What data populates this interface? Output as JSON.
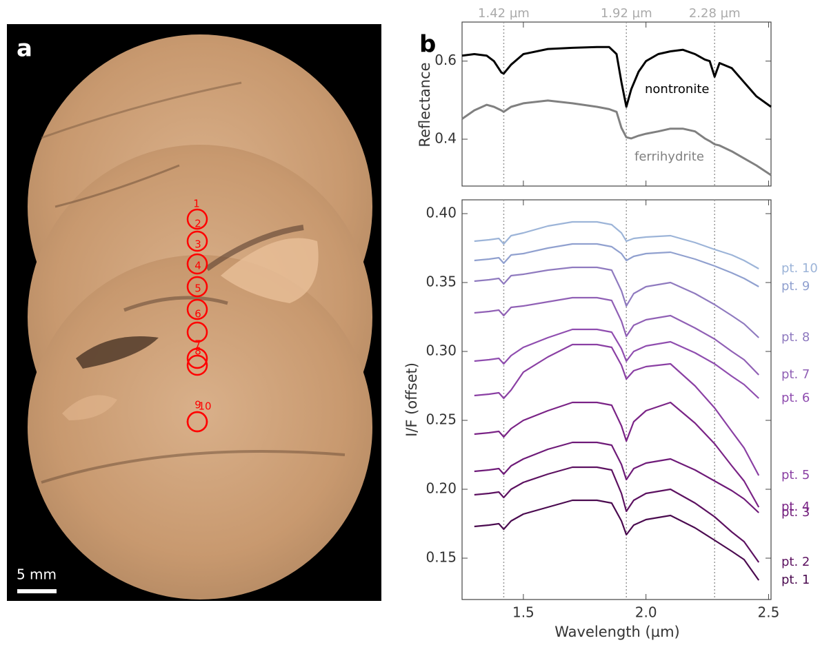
{
  "panel_a": {
    "label": "a",
    "scale_bar": "5 mm",
    "points": [
      "1",
      "2",
      "3",
      "4",
      "5",
      "6",
      "7",
      "8",
      "9",
      "10"
    ]
  },
  "chart_data": [
    {
      "type": "line",
      "panel_label": "b",
      "y_label": "Reflectance",
      "x": [
        1.25,
        1.3,
        1.35,
        1.38,
        1.41,
        1.42,
        1.45,
        1.5,
        1.6,
        1.7,
        1.8,
        1.85,
        1.88,
        1.9,
        1.92,
        1.94,
        1.97,
        2.0,
        2.05,
        2.1,
        2.15,
        2.2,
        2.24,
        2.26,
        2.28,
        2.3,
        2.35,
        2.4,
        2.45,
        2.51
      ],
      "xlim": [
        1.25,
        2.51
      ],
      "ylim": [
        0.28,
        0.7
      ],
      "yticks": [
        0.4,
        0.6
      ],
      "vlines": [
        {
          "value": 1.42,
          "label": "1.42 µm"
        },
        {
          "value": 1.92,
          "label": "1.92 µm"
        },
        {
          "value": 2.28,
          "label": "2.28 µm"
        }
      ],
      "series": [
        {
          "name": "nontronite",
          "color": "#000000",
          "values": [
            0.614,
            0.618,
            0.614,
            0.6,
            0.571,
            0.568,
            0.591,
            0.618,
            0.631,
            0.634,
            0.636,
            0.636,
            0.618,
            0.546,
            0.483,
            0.528,
            0.573,
            0.6,
            0.618,
            0.625,
            0.629,
            0.618,
            0.604,
            0.6,
            0.56,
            0.595,
            0.582,
            0.546,
            0.51,
            0.483
          ]
        },
        {
          "name": "ferrihydrite",
          "color": "#808080",
          "values": [
            0.452,
            0.474,
            0.488,
            0.483,
            0.474,
            0.47,
            0.483,
            0.492,
            0.499,
            0.492,
            0.483,
            0.477,
            0.47,
            0.429,
            0.405,
            0.402,
            0.409,
            0.414,
            0.42,
            0.427,
            0.427,
            0.42,
            0.402,
            0.395,
            0.387,
            0.384,
            0.369,
            0.351,
            0.333,
            0.308
          ]
        }
      ]
    },
    {
      "type": "line",
      "x_label": "Wavelength (µm)",
      "y_label": "I/F (offset)",
      "x": [
        1.3,
        1.36,
        1.4,
        1.42,
        1.45,
        1.5,
        1.6,
        1.7,
        1.8,
        1.86,
        1.9,
        1.92,
        1.95,
        2.0,
        2.1,
        2.2,
        2.28,
        2.35,
        2.4,
        2.46
      ],
      "xlim": [
        1.25,
        2.51
      ],
      "ylim": [
        0.12,
        0.41
      ],
      "xticks": [
        1.5,
        {
          "value": 2,
          "label": "2.0"
        },
        2.5
      ],
      "yticks": [
        0.15,
        {
          "value": 0.2,
          "label": "0.20"
        },
        0.25,
        {
          "value": 0.3,
          "label": "0.30"
        },
        0.35,
        {
          "value": 0.4,
          "label": "0.40"
        }
      ],
      "series": [
        {
          "name": "pt. 1",
          "color": "#4a0a4f",
          "values": [
            0.173,
            0.174,
            0.175,
            0.171,
            0.177,
            0.182,
            0.187,
            0.192,
            0.192,
            0.19,
            0.177,
            0.167,
            0.174,
            0.178,
            0.181,
            0.172,
            0.163,
            0.155,
            0.149,
            0.134
          ]
        },
        {
          "name": "pt. 2",
          "color": "#5c1160",
          "values": [
            0.196,
            0.197,
            0.198,
            0.194,
            0.2,
            0.205,
            0.211,
            0.216,
            0.216,
            0.214,
            0.197,
            0.184,
            0.192,
            0.197,
            0.2,
            0.19,
            0.18,
            0.169,
            0.162,
            0.147
          ]
        },
        {
          "name": "pt. 3",
          "color": "#6e1a78",
          "values": [
            0.213,
            0.214,
            0.215,
            0.211,
            0.217,
            0.222,
            0.229,
            0.234,
            0.234,
            0.232,
            0.218,
            0.207,
            0.215,
            0.219,
            0.222,
            0.214,
            0.206,
            0.199,
            0.193,
            0.183
          ]
        },
        {
          "name": "pt. 4",
          "color": "#7a2386",
          "values": [
            0.24,
            0.241,
            0.242,
            0.238,
            0.244,
            0.25,
            0.257,
            0.263,
            0.263,
            0.261,
            0.246,
            0.235,
            0.249,
            0.257,
            0.263,
            0.248,
            0.233,
            0.217,
            0.206,
            0.187
          ]
        },
        {
          "name": "pt. 5",
          "color": "#8a3fa3",
          "values": [
            0.268,
            0.269,
            0.27,
            0.266,
            0.272,
            0.285,
            0.296,
            0.305,
            0.305,
            0.303,
            0.29,
            0.28,
            0.286,
            0.289,
            0.291,
            0.275,
            0.259,
            0.242,
            0.23,
            0.21
          ]
        },
        {
          "name": "pt. 6",
          "color": "#8f4daf",
          "values": [
            0.293,
            0.294,
            0.295,
            0.291,
            0.297,
            0.303,
            0.31,
            0.316,
            0.316,
            0.314,
            0.302,
            0.293,
            0.3,
            0.304,
            0.307,
            0.299,
            0.291,
            0.282,
            0.276,
            0.266
          ]
        },
        {
          "name": "pt. 7",
          "color": "#9060b5",
          "values": [
            0.328,
            0.329,
            0.33,
            0.326,
            0.332,
            0.333,
            0.336,
            0.339,
            0.339,
            0.337,
            0.322,
            0.311,
            0.319,
            0.323,
            0.326,
            0.317,
            0.309,
            0.3,
            0.294,
            0.283
          ]
        },
        {
          "name": "pt. 8",
          "color": "#8f7abf",
          "values": [
            0.351,
            0.352,
            0.353,
            0.349,
            0.355,
            0.356,
            0.359,
            0.361,
            0.361,
            0.359,
            0.344,
            0.333,
            0.342,
            0.347,
            0.35,
            0.342,
            0.334,
            0.326,
            0.32,
            0.31
          ]
        },
        {
          "name": "pt. 9",
          "color": "#90a0cf",
          "values": [
            0.366,
            0.367,
            0.368,
            0.364,
            0.37,
            0.371,
            0.375,
            0.378,
            0.378,
            0.376,
            0.371,
            0.366,
            0.369,
            0.371,
            0.372,
            0.367,
            0.362,
            0.357,
            0.353,
            0.347
          ]
        },
        {
          "name": "pt. 10",
          "color": "#9cb4d8",
          "values": [
            0.38,
            0.381,
            0.382,
            0.378,
            0.384,
            0.386,
            0.391,
            0.394,
            0.394,
            0.392,
            0.386,
            0.38,
            0.382,
            0.383,
            0.384,
            0.379,
            0.374,
            0.37,
            0.366,
            0.36
          ]
        }
      ]
    }
  ]
}
